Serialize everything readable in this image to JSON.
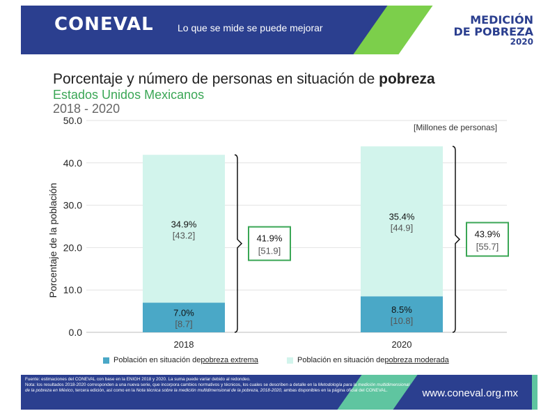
{
  "header": {
    "logo": "CONEVAL",
    "slogan": "Lo que se mide se puede mejorar",
    "badge_line1": "MEDICIÓN",
    "badge_line2": "DE POBREZA",
    "badge_year": "2020"
  },
  "title_main": "Porcentaje y número de personas en situación de ",
  "title_bold": "pobreza",
  "subtitle": "Estados Unidos Mexicanos",
  "period": "2018 - 2020",
  "units_note": "[Millones de personas]",
  "colors": {
    "extrema": "#4aa8c7",
    "moderada": "#d2f4ec",
    "bracket_box": "#3aa655",
    "header": "#2b3f8f"
  },
  "chart_data": {
    "type": "bar",
    "stacked": true,
    "categories": [
      "2018",
      "2020"
    ],
    "ylabel": "Porcentaje de la población",
    "ylim": [
      0,
      50
    ],
    "yticks": [
      "0.0",
      "10.0",
      "20.0",
      "30.0",
      "40.0",
      "50.0"
    ],
    "grid": true,
    "legend_position": "bottom",
    "series": [
      {
        "name": "Población en situación de pobreza extrema",
        "legend_prefix": "Población en situación de ",
        "legend_emph": "pobreza extrema",
        "values": [
          7.0,
          8.5
        ],
        "pct_labels": [
          "7.0%",
          "8.5%"
        ],
        "num_labels": [
          "[8.7]",
          "[10.8]"
        ]
      },
      {
        "name": "Población en situación de pobreza moderada",
        "legend_prefix": "Población en situación de ",
        "legend_emph": "pobreza moderada",
        "values": [
          34.9,
          35.4
        ],
        "pct_labels": [
          "34.9%",
          "35.4%"
        ],
        "num_labels": [
          "[43.2]",
          "[44.9]"
        ]
      }
    ],
    "totals": {
      "values": [
        41.9,
        43.9
      ],
      "pct_labels": [
        "41.9%",
        "43.9%"
      ],
      "num_labels": [
        "[51.9]",
        "[55.7]"
      ]
    }
  },
  "footer": {
    "source": "Fuente: estimaciones del CONEVAL con base en la ENIGH 2018 y 2020. La suma puede variar debido al redondeo.",
    "note_a": "Nota: los resultados 2018-2020 corresponden a una nueva serie, que incorpora cambios normativos y técnicos, los cuales se describen a detalle en la",
    "note_b_italic": "Metodología para la medición multidimensional de la pobreza en México",
    "note_c": ", tercera edición, así como en la",
    "note_d_italic": "Nota técnica sobre la medición multidimensional de la pobreza, 2018-2020",
    "note_e": ", ambas disponibles en la página oficial del CONEVAL.",
    "url": "www.coneval.org.mx"
  }
}
